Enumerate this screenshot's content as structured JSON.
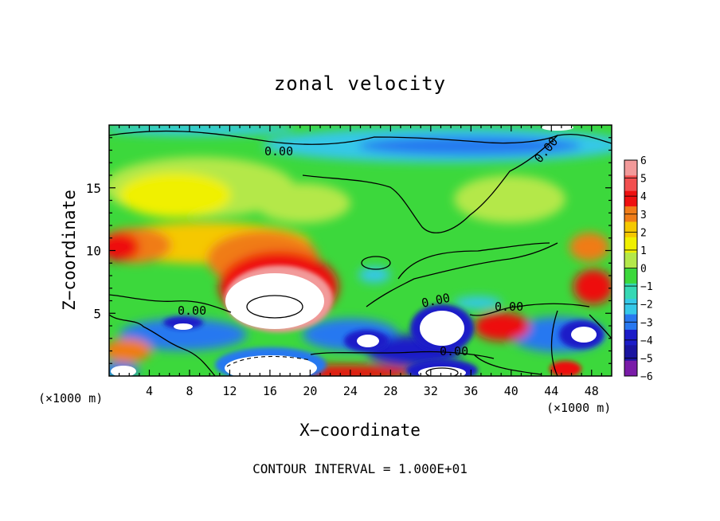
{
  "chart_data": {
    "type": "heatmap",
    "title": "zonal velocity",
    "xlabel": "X−coordinate",
    "ylabel": "Z−coordinate",
    "x_unit_left": "(×1000 m)",
    "x_unit_right": "(×1000 m)",
    "xlim": [
      0,
      50
    ],
    "ylim": [
      0,
      20
    ],
    "x_ticks": [
      4,
      8,
      12,
      16,
      20,
      24,
      28,
      32,
      36,
      40,
      44,
      48
    ],
    "y_ticks": [
      5,
      10,
      15
    ],
    "colorbar": {
      "levels": [
        6,
        5,
        4,
        3,
        2,
        1,
        0,
        -1,
        -2,
        -3,
        -4,
        -5,
        -6
      ],
      "labels": [
        "6",
        "5",
        "4",
        "3",
        "2",
        "1",
        "0",
        "−1",
        "−2",
        "−3",
        "−4",
        "−5",
        "−6"
      ],
      "colors": [
        "#f29a9a",
        "#f25050",
        "#ee1010",
        "#f07c18",
        "#f5c800",
        "#f0f000",
        "#b4e84a",
        "#3cd83c",
        "#36d8b4",
        "#36c8e8",
        "#2878f0",
        "#1c1cc8",
        "#1a14a0",
        "#7a1ca8"
      ]
    },
    "contour_labels": [
      "0.00",
      "0.00",
      "0.00",
      "0.00",
      "0.00",
      "0.00"
    ],
    "footer": "CONTOUR INTERVAL = 1.000E+01"
  }
}
